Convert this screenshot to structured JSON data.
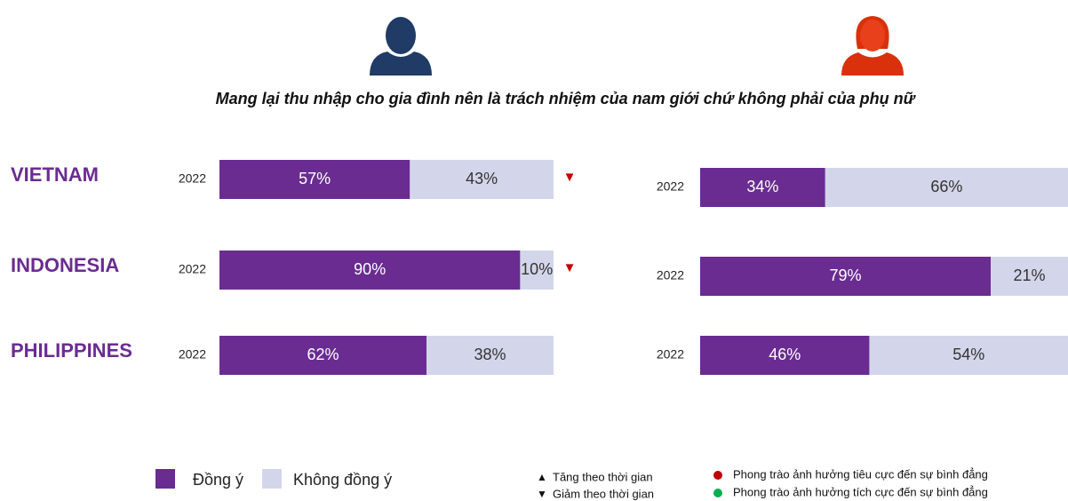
{
  "title": "Mang lại thu nhập cho gia đình nên là trách nhiệm của nam giới chứ không phải của phụ nữ",
  "chart_data": [
    {
      "type": "bar",
      "orientation": "horizontal",
      "stacked": true,
      "categories": [
        "VIETNAM",
        "INDONESIA",
        "PHILIPPINES"
      ],
      "years": [
        "2022",
        "2022",
        "2022"
      ],
      "trend_markers": [
        "▼",
        "▼",
        null
      ],
      "trend_color": "#c00000",
      "xlim": [
        0,
        100
      ],
      "series": [
        {
          "name": "Đồng ý",
          "color": "#6a2c91",
          "values": [
            57,
            90,
            62
          ],
          "value_labels": [
            "57%",
            "90%",
            "62%"
          ]
        },
        {
          "name": "Không đồng ý",
          "color": "#d3d6ea",
          "values": [
            43,
            10,
            38
          ],
          "value_labels": [
            "43%",
            "10%",
            "38%"
          ]
        }
      ]
    },
    {
      "type": "bar",
      "orientation": "horizontal",
      "stacked": true,
      "years": [
        "2022",
        "2022",
        "2022"
      ],
      "xlim": [
        0,
        100
      ],
      "series": [
        {
          "color": "#6a2c91",
          "values": [
            34,
            79,
            46
          ],
          "value_labels": [
            "34%",
            "79%",
            "46%"
          ]
        },
        {
          "color": "#d3d6ea",
          "values": [
            66,
            21,
            54
          ],
          "value_labels": [
            "66%",
            "21%",
            "54%"
          ]
        }
      ]
    }
  ],
  "notes": [
    {
      "symbol": "▲",
      "text": "Tăng theo thời gian"
    },
    {
      "symbol": "▼",
      "text": "Giảm theo thời gian"
    }
  ],
  "dots": [
    {
      "color": "#c00000",
      "text": "Phong trào ảnh hưởng tiêu cực đến sự bình đẳng"
    },
    {
      "color": "#00b050",
      "text": "Phong trào ảnh hưởng tích cực đến sự bình đẳng"
    }
  ]
}
